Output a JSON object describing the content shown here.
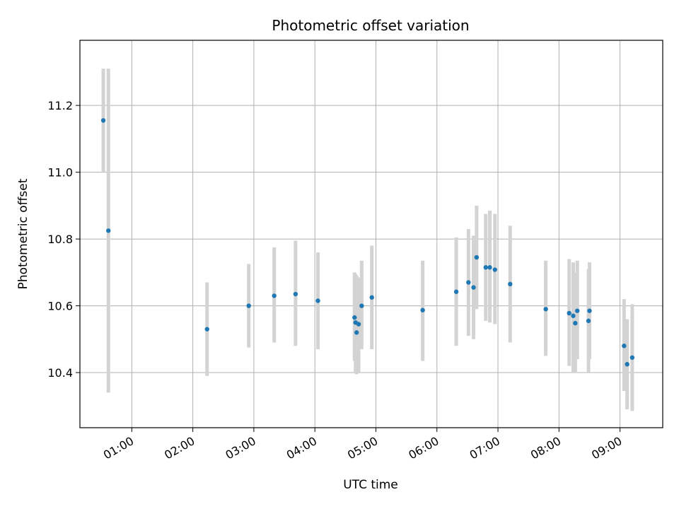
{
  "chart_data": {
    "type": "scatter",
    "title": "Photometric offset variation",
    "xlabel": "UTC time",
    "ylabel": "Photometric offset",
    "grid": true,
    "x_ticks": [
      "01:00",
      "02:00",
      "03:00",
      "04:00",
      "05:00",
      "06:00",
      "07:00",
      "08:00",
      "09:00"
    ],
    "y_ticks": [
      "10.4",
      "10.6",
      "10.8",
      "11.0",
      "11.2"
    ],
    "xlim": [
      "00:09",
      "09:42"
    ],
    "ylim": [
      10.235,
      11.395
    ],
    "marker_color": "#1f77b4",
    "errorbar_color": "#d3d3d3",
    "points": [
      {
        "t": "00:32",
        "y": 11.155,
        "lo": 11.0,
        "hi": 11.31
      },
      {
        "t": "00:37",
        "y": 10.825,
        "lo": 10.34,
        "hi": 11.31
      },
      {
        "t": "02:14",
        "y": 10.53,
        "lo": 10.39,
        "hi": 10.67
      },
      {
        "t": "02:55",
        "y": 10.6,
        "lo": 10.475,
        "hi": 10.725
      },
      {
        "t": "03:20",
        "y": 10.63,
        "lo": 10.49,
        "hi": 10.775
      },
      {
        "t": "03:41",
        "y": 10.635,
        "lo": 10.48,
        "hi": 10.795
      },
      {
        "t": "04:03",
        "y": 10.615,
        "lo": 10.47,
        "hi": 10.76
      },
      {
        "t": "04:39",
        "y": 10.565,
        "lo": 10.435,
        "hi": 10.7
      },
      {
        "t": "04:40",
        "y": 10.55,
        "lo": 10.4,
        "hi": 10.695
      },
      {
        "t": "04:41",
        "y": 10.52,
        "lo": 10.395,
        "hi": 10.69
      },
      {
        "t": "04:43",
        "y": 10.545,
        "lo": 10.4,
        "hi": 10.685
      },
      {
        "t": "04:46",
        "y": 10.6,
        "lo": 10.47,
        "hi": 10.735
      },
      {
        "t": "04:56",
        "y": 10.625,
        "lo": 10.47,
        "hi": 10.78
      },
      {
        "t": "05:46",
        "y": 10.587,
        "lo": 10.435,
        "hi": 10.735
      },
      {
        "t": "06:19",
        "y": 10.642,
        "lo": 10.48,
        "hi": 10.805
      },
      {
        "t": "06:31",
        "y": 10.67,
        "lo": 10.51,
        "hi": 10.83
      },
      {
        "t": "06:36",
        "y": 10.655,
        "lo": 10.5,
        "hi": 10.81
      },
      {
        "t": "06:39",
        "y": 10.745,
        "lo": 10.59,
        "hi": 10.9
      },
      {
        "t": "06:48",
        "y": 10.715,
        "lo": 10.555,
        "hi": 10.875
      },
      {
        "t": "06:52",
        "y": 10.715,
        "lo": 10.55,
        "hi": 10.885
      },
      {
        "t": "06:57",
        "y": 10.708,
        "lo": 10.545,
        "hi": 10.875
      },
      {
        "t": "07:12",
        "y": 10.665,
        "lo": 10.49,
        "hi": 10.84
      },
      {
        "t": "07:47",
        "y": 10.59,
        "lo": 10.45,
        "hi": 10.735
      },
      {
        "t": "08:10",
        "y": 10.578,
        "lo": 10.42,
        "hi": 10.74
      },
      {
        "t": "08:14",
        "y": 10.57,
        "lo": 10.4,
        "hi": 10.73
      },
      {
        "t": "08:16",
        "y": 10.548,
        "lo": 10.4,
        "hi": 10.7
      },
      {
        "t": "08:18",
        "y": 10.585,
        "lo": 10.44,
        "hi": 10.735
      },
      {
        "t": "08:29",
        "y": 10.555,
        "lo": 10.4,
        "hi": 10.71
      },
      {
        "t": "08:30",
        "y": 10.585,
        "lo": 10.44,
        "hi": 10.73
      },
      {
        "t": "09:04",
        "y": 10.48,
        "lo": 10.345,
        "hi": 10.62
      },
      {
        "t": "09:07",
        "y": 10.425,
        "lo": 10.29,
        "hi": 10.56
      },
      {
        "t": "09:12",
        "y": 10.445,
        "lo": 10.285,
        "hi": 10.605
      }
    ]
  }
}
